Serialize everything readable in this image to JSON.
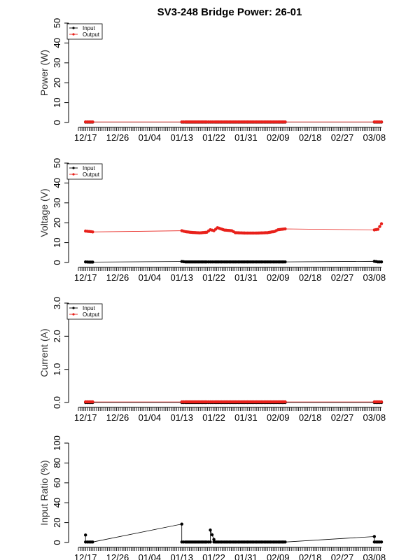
{
  "title": "SV3-248 Bridge Power: 26-01",
  "colors": {
    "input": "#000000",
    "output": "#e8201a",
    "axis": "#000000"
  },
  "x_ticks": [
    "12/17",
    "12/26",
    "01/04",
    "01/13",
    "01/22",
    "01/31",
    "02/09",
    "02/18",
    "02/27",
    "03/08"
  ],
  "chart_data": [
    {
      "type": "line",
      "ylabel": "Power (W)",
      "ylim": [
        0,
        50
      ],
      "y_ticks": [
        "0",
        "10",
        "20",
        "30",
        "40",
        "50"
      ],
      "legend": {
        "position": "top-left",
        "entries": [
          "Input",
          "Output"
        ]
      },
      "xlim": [
        "12/15",
        "03/10"
      ],
      "series": [
        {
          "name": "Input",
          "color": "#000000",
          "x": [
            "12/17",
            "12/18",
            "12/19",
            "01/13",
            "01/14",
            "01/16",
            "01/18",
            "01/20",
            "01/21",
            "01/22",
            "01/25",
            "01/28",
            "01/31",
            "02/03",
            "02/06",
            "02/09",
            "02/11",
            "03/08",
            "03/09",
            "03/10"
          ],
          "y": [
            0.2,
            0.2,
            0.2,
            0.2,
            0.2,
            0.2,
            0.2,
            0.2,
            0.2,
            0.2,
            0.2,
            0.2,
            0.2,
            0.2,
            0.2,
            0.2,
            0.2,
            0.2,
            0.2,
            0.2
          ]
        },
        {
          "name": "Output",
          "color": "#e8201a",
          "x": [
            "12/17",
            "12/18",
            "12/19",
            "01/13",
            "01/14",
            "01/16",
            "01/18",
            "01/20",
            "01/21",
            "01/22",
            "01/25",
            "01/28",
            "01/31",
            "02/03",
            "02/06",
            "02/09",
            "02/11",
            "03/08",
            "03/09",
            "03/10"
          ],
          "y": [
            0.3,
            0.3,
            0.3,
            0.3,
            0.3,
            0.3,
            0.3,
            0.3,
            0.3,
            0.3,
            0.3,
            0.3,
            0.3,
            0.3,
            0.3,
            0.3,
            0.3,
            0.3,
            0.3,
            0.3
          ]
        }
      ]
    },
    {
      "type": "line",
      "ylabel": "Voltage (V)",
      "ylim": [
        0,
        50
      ],
      "y_ticks": [
        "0",
        "10",
        "20",
        "30",
        "40",
        "50"
      ],
      "legend": {
        "position": "top-left",
        "entries": [
          "Input",
          "Output"
        ]
      },
      "xlim": [
        "12/15",
        "03/10"
      ],
      "series": [
        {
          "name": "Input",
          "color": "#000000",
          "x": [
            "12/17",
            "12/18",
            "12/19",
            "01/13",
            "01/14",
            "01/16",
            "01/18",
            "01/20",
            "01/21",
            "01/22",
            "01/25",
            "01/28",
            "01/31",
            "02/03",
            "02/06",
            "02/09",
            "02/11",
            "03/08",
            "03/09",
            "03/10"
          ],
          "y": [
            0.3,
            0.2,
            0.2,
            0.5,
            0.3,
            0.3,
            0.3,
            0.3,
            0.3,
            0.3,
            0.3,
            0.3,
            0.3,
            0.3,
            0.3,
            0.3,
            0.3,
            0.6,
            0.3,
            0.3
          ]
        },
        {
          "name": "Output",
          "color": "#e8201a",
          "x": [
            "12/17",
            "12/18",
            "12/19",
            "01/13",
            "01/14",
            "01/16",
            "01/18",
            "01/20",
            "01/21",
            "01/22",
            "01/23",
            "01/25",
            "01/27",
            "01/28",
            "01/31",
            "02/03",
            "02/06",
            "02/08",
            "02/09",
            "02/11",
            "03/08",
            "03/09",
            "03/10"
          ],
          "y": [
            15.8,
            15.6,
            15.4,
            16.0,
            15.5,
            15.1,
            14.9,
            15.2,
            16.5,
            16.0,
            17.5,
            16.3,
            16.0,
            15.0,
            14.8,
            14.8,
            15.0,
            15.6,
            16.5,
            16.9,
            16.4,
            16.7,
            19.5
          ]
        }
      ]
    },
    {
      "type": "line",
      "ylabel": "Current (A)",
      "ylim": [
        0,
        3
      ],
      "y_ticks": [
        "0.0",
        "1.0",
        "2.0",
        "3.0"
      ],
      "legend": {
        "position": "top-left",
        "entries": [
          "Input",
          "Output"
        ]
      },
      "xlim": [
        "12/15",
        "03/10"
      ],
      "series": [
        {
          "name": "Input",
          "color": "#000000",
          "x": [
            "12/17",
            "12/18",
            "12/19",
            "01/13",
            "01/14",
            "01/16",
            "01/18",
            "01/20",
            "01/21",
            "01/22",
            "01/25",
            "01/28",
            "01/31",
            "02/03",
            "02/06",
            "02/09",
            "02/11",
            "03/08",
            "03/09",
            "03/10"
          ],
          "y": [
            0.0,
            0.0,
            0.0,
            0.0,
            0.0,
            0.0,
            0.0,
            0.0,
            0.0,
            0.0,
            0.0,
            0.0,
            0.0,
            0.0,
            0.0,
            0.0,
            0.0,
            0.0,
            0.0,
            0.0
          ]
        },
        {
          "name": "Output",
          "color": "#e8201a",
          "x": [
            "12/17",
            "12/18",
            "12/19",
            "01/13",
            "01/14",
            "01/16",
            "01/18",
            "01/20",
            "01/21",
            "01/22",
            "01/25",
            "01/28",
            "01/31",
            "02/03",
            "02/06",
            "02/09",
            "02/11",
            "03/08",
            "03/09",
            "03/10"
          ],
          "y": [
            0.02,
            0.02,
            0.02,
            0.02,
            0.02,
            0.02,
            0.02,
            0.02,
            0.02,
            0.02,
            0.02,
            0.02,
            0.02,
            0.02,
            0.02,
            0.02,
            0.02,
            0.02,
            0.02,
            0.02
          ]
        }
      ]
    },
    {
      "type": "line",
      "ylabel": "Input Ratio (%)",
      "ylim": [
        0,
        100
      ],
      "y_ticks": [
        "0",
        "20",
        "40",
        "60",
        "80",
        "100"
      ],
      "legend": null,
      "xlim": [
        "12/15",
        "03/10"
      ],
      "series": [
        {
          "name": "",
          "color": "#000000",
          "x": [
            "12/17",
            "12/17",
            "12/18",
            "12/19",
            "01/13",
            "01/13",
            "01/14",
            "01/16",
            "01/18",
            "01/20",
            "01/21",
            "01/21",
            "01/22",
            "01/22",
            "01/25",
            "01/28",
            "01/31",
            "02/03",
            "02/06",
            "02/09",
            "02/11",
            "03/08",
            "03/08",
            "03/09",
            "03/10"
          ],
          "y": [
            7.5,
            0.5,
            0.5,
            0.5,
            18.5,
            0.5,
            0.5,
            0.5,
            0.5,
            0.5,
            0.5,
            12.5,
            3.0,
            0.5,
            0.5,
            0.5,
            0.5,
            0.5,
            0.5,
            0.5,
            0.5,
            6.0,
            0.5,
            0.5,
            0.5
          ]
        }
      ]
    }
  ]
}
